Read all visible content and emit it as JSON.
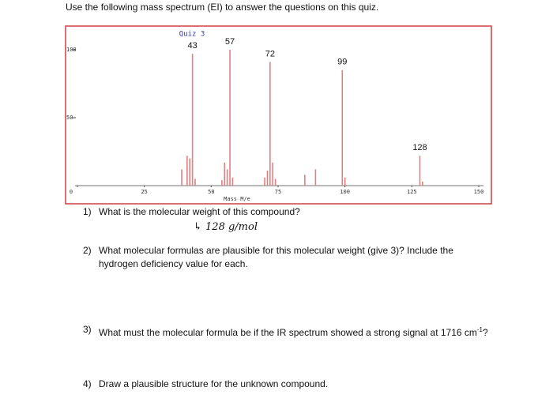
{
  "intro": "Use the following mass spectrum (EI) to answer the questions on this quiz.",
  "chart_data": {
    "type": "stem",
    "title": "Quiz 3",
    "x_label": "Mass M/e",
    "xlim": [
      0,
      150
    ],
    "xticks": [
      0,
      25,
      50,
      75,
      100,
      125,
      150
    ],
    "ylim": [
      0,
      100
    ],
    "yticks": [
      50,
      100
    ],
    "color": "#e08080",
    "frame_color": "#d04040",
    "peaks": {
      "x": [
        43,
        57,
        72,
        99,
        128
      ],
      "values": [
        97,
        100,
        91,
        85,
        22
      ]
    },
    "minor_peaks": {
      "x": [
        39,
        41,
        42,
        44,
        54,
        55,
        56,
        58,
        70,
        71,
        73,
        74,
        85,
        89,
        100,
        129
      ],
      "values": [
        12,
        22,
        20,
        5,
        4,
        17,
        12,
        6,
        6,
        11,
        17,
        5,
        8,
        12,
        6,
        3
      ]
    }
  },
  "questions": [
    {
      "number": "1)",
      "text": "What is the molecular weight of this compound?"
    },
    {
      "number": "2)",
      "text": "What molecular formulas are plausible for this molecular weight (give 3)? Include the hydrogen deficiency value for each."
    },
    {
      "number": "3)",
      "text": "What must the molecular formula be if the IR spectrum showed a strong signal at 1716 cm",
      "superscript": "-1",
      "tail": "?"
    },
    {
      "number": "4)",
      "text": "Draw a plausible structure for the unknown compound."
    }
  ],
  "handwritten_answer": "↳ 128 g/mol"
}
